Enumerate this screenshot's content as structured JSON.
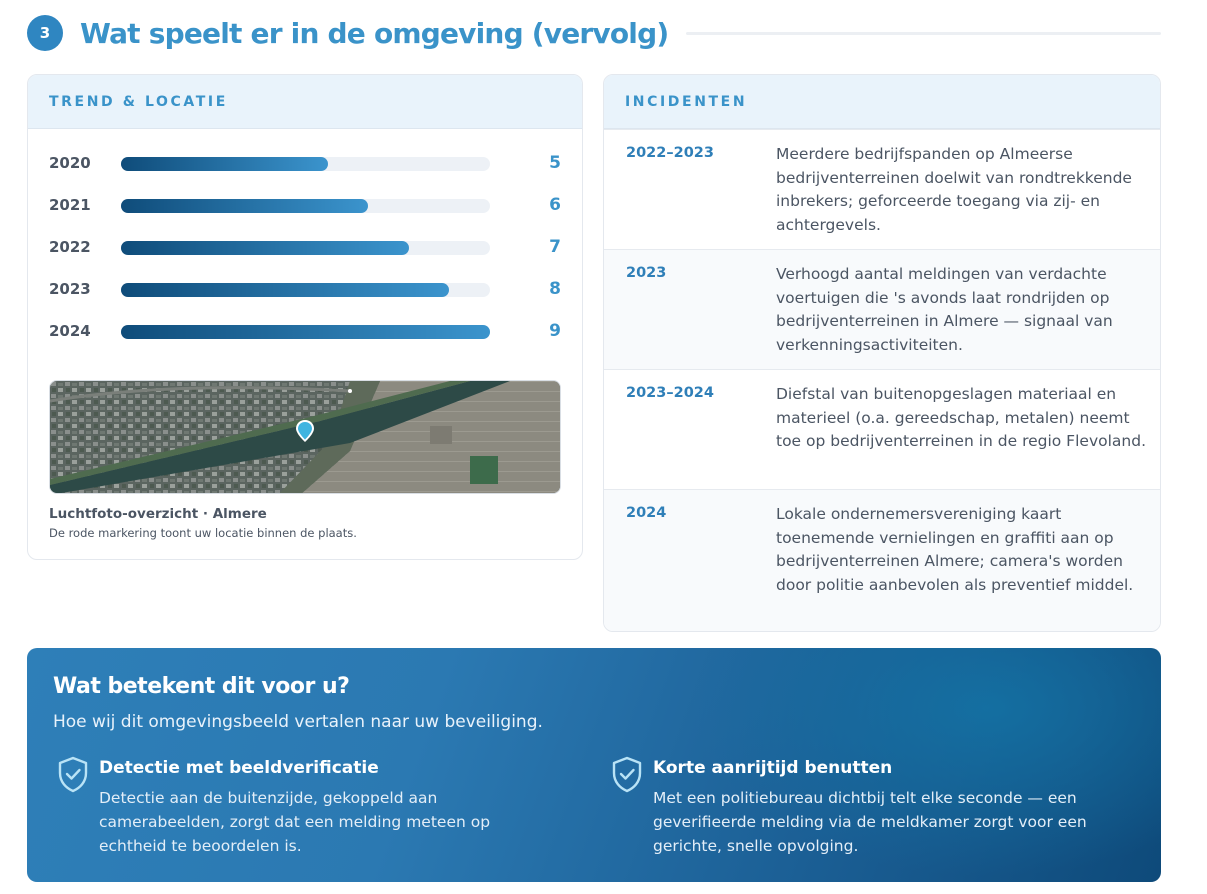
{
  "header": {
    "step_number": "3",
    "title": "Wat speelt er in de omgeving (vervolg)"
  },
  "trend": {
    "title": "TREND & LOCATIE",
    "bars": [
      {
        "year": "2020",
        "value": "5",
        "fraction": 0.56
      },
      {
        "year": "2021",
        "value": "6",
        "fraction": 0.67
      },
      {
        "year": "2022",
        "value": "7",
        "fraction": 0.78
      },
      {
        "year": "2023",
        "value": "8",
        "fraction": 0.89
      },
      {
        "year": "2024",
        "value": "9",
        "fraction": 1.0
      }
    ],
    "map_caption": "Luchtfoto-overzicht · Almere",
    "map_subcaption": "De rode markering toont uw locatie binnen de plaats."
  },
  "incidents": {
    "title": "INCIDENTEN",
    "rows": [
      {
        "period": "2022–2023",
        "text": "Meerdere bedrijfspanden op Almeerse bedrijventerreinen doelwit van rondtrekkende inbrekers; geforceerde toegang via zij- en achtergevels."
      },
      {
        "period": "2023",
        "text": "Verhoogd aantal meldingen van verdachte voertuigen die 's avonds laat rondrijden op bedrijventerreinen in Almere — signaal van verkenningsactiviteiten."
      },
      {
        "period": "2023–2024",
        "text": "Diefstal van buitenopgeslagen materiaal en materieel (o.a. gereedschap, metalen) neemt toe op bedrijventerreinen in de regio Flevoland."
      },
      {
        "period": "2024",
        "text": "Lokale ondernemersvereniging kaart toenemende vernielingen en graffiti aan op bedrijventerreinen Almere; camera's worden door politie aanbevolen als preventief middel."
      }
    ]
  },
  "banner": {
    "title": "Wat betekent dit voor u?",
    "subtitle": "Hoe wij dit omgevingsbeeld vertalen naar uw beveiliging.",
    "features": [
      {
        "icon": "shield-check-icon",
        "title": "Detectie met beeldverificatie",
        "text": "Detectie aan de buitenzijde, gekoppeld aan camerabeelden, zorgt dat een melding meteen op echtheid te beoordelen is."
      },
      {
        "icon": "shield-check-icon",
        "title": "Korte aanrijtijd benutten",
        "text": "Met een politiebureau dichtbij telt elke seconde — een geverifieerde melding via de meldkamer zorgt voor een gerichte, snelle opvolging."
      }
    ]
  },
  "colors": {
    "accent": "#3a93c9",
    "bar_dark": "#0f4c7a",
    "banner_dark": "#0e4a7a",
    "map_marker": "#3fb4e0"
  }
}
